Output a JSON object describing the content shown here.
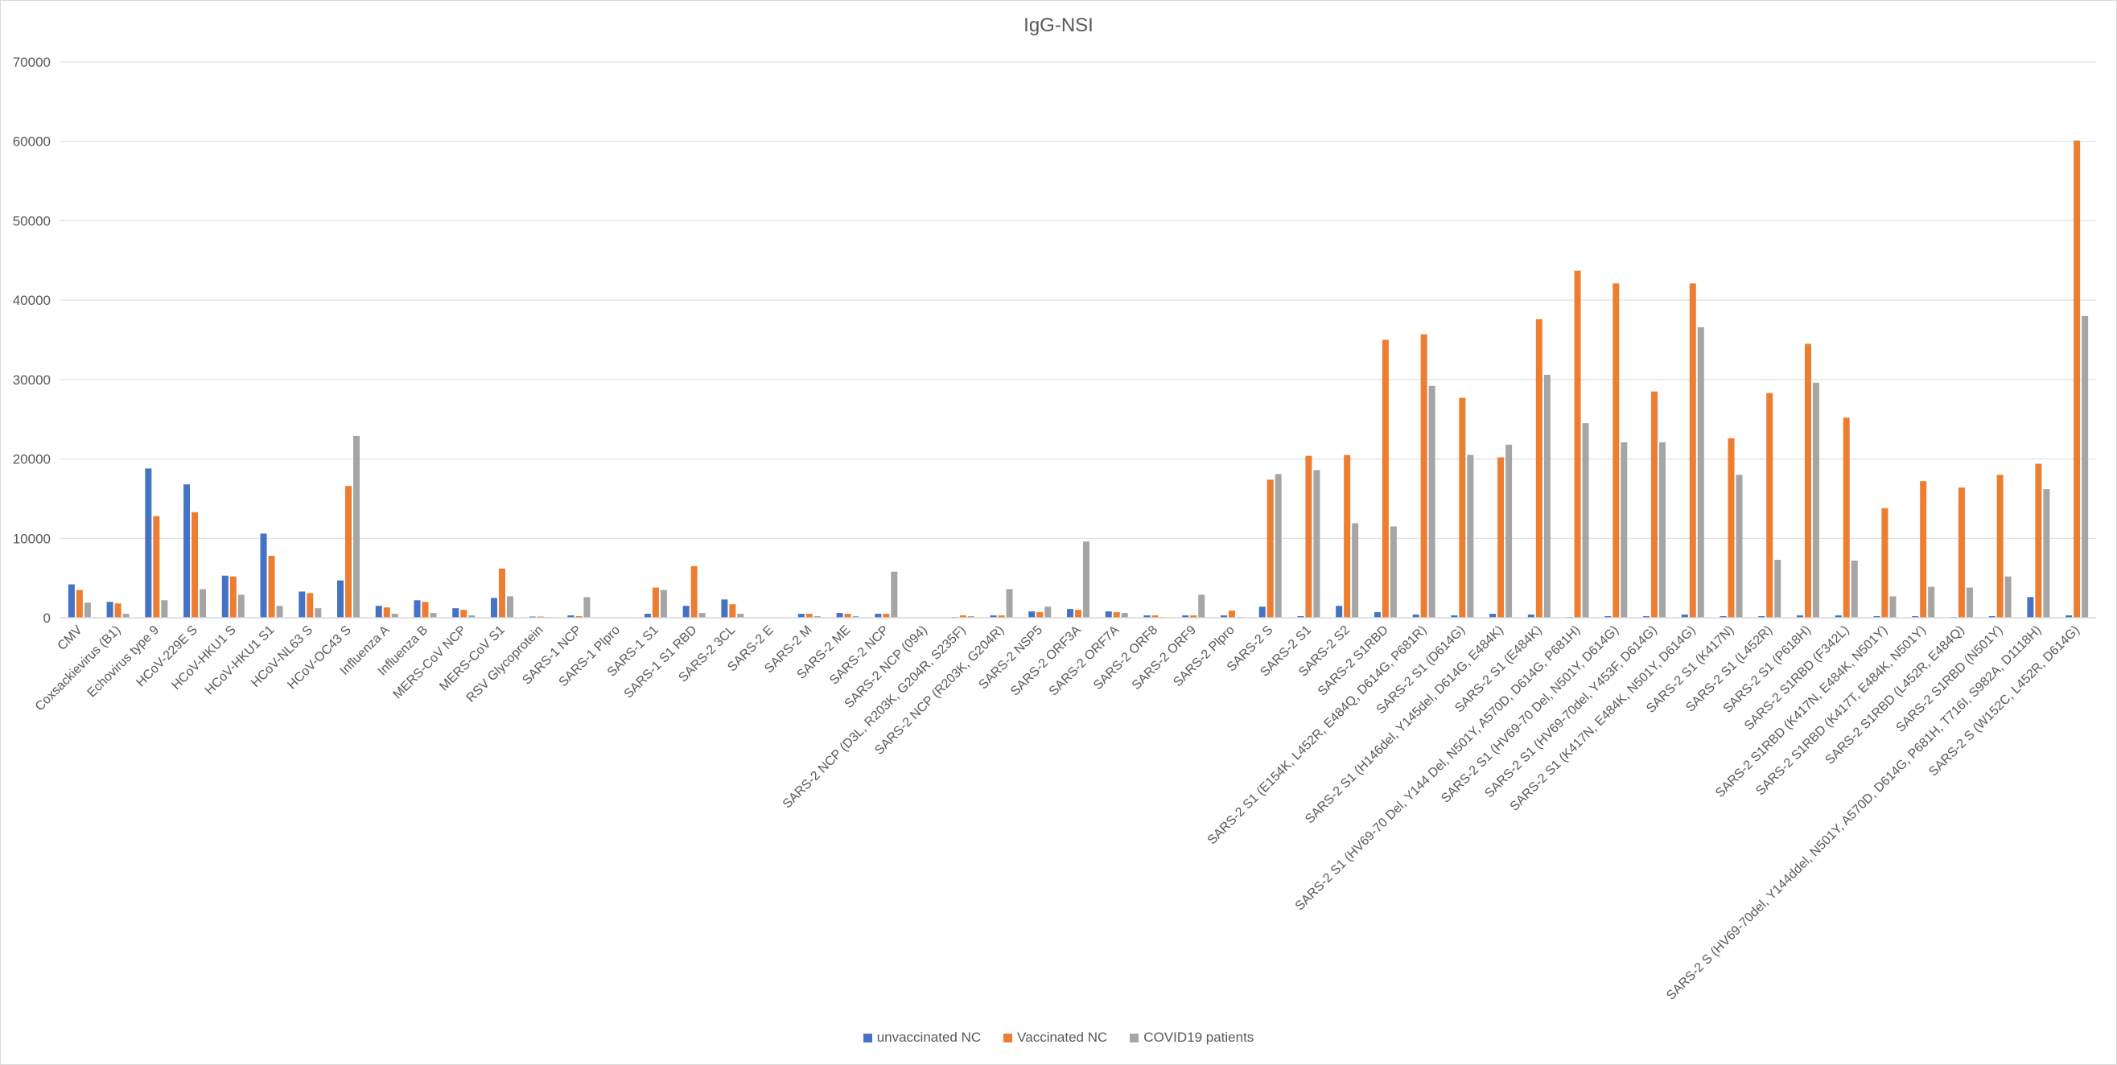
{
  "chart_data": {
    "type": "bar",
    "title": "IgG-NSI",
    "xlabel": "",
    "ylabel": "",
    "ylim": [
      0,
      70000
    ],
    "yticks": [
      "0",
      "10000",
      "20000",
      "30000",
      "40000",
      "50000",
      "60000",
      "70000"
    ],
    "grid": true,
    "legend_position": "bottom",
    "categories": [
      "CMV",
      "Coxsackievirus (B1)",
      "Echovirus type 9",
      "HCoV-229E S",
      "HCoV-HKU1 S",
      "HCoV-HKU1 S1",
      "HCoV-NL63 S",
      "HCoV-OC43 S",
      "Influenza A",
      "Influenza B",
      "MERS-CoV NCP",
      "MERS-CoV S1",
      "RSV Glycoprotein",
      "SARS-1 NCP",
      "SARS-1 Plpro",
      "SARS-1 S1",
      "SARS-1 S1 RBD",
      "SARS-2 3CL",
      "SARS-2 E",
      "SARS-2 M",
      "SARS-2 ME",
      "SARS-2 NCP",
      "SARS-2 NCP (094)",
      "SARS-2 NCP (D3L, R203K, G204R, S235F)",
      "SARS-2 NCP (R203K, G204R)",
      "SARS-2 NSP5",
      "SARS-2 ORF3A",
      "SARS-2 ORF7A",
      "SARS-2 ORF8",
      "SARS-2 ORF9",
      "SARS-2 Plpro",
      "SARS-2 S",
      "SARS-2 S1",
      "SARS-2 S2",
      "SARS-2 S1RBD",
      "SARS-2 S1 (E154K, L452R, E484Q, D614G, P681R)",
      "SARS-2 S1 (D614G)",
      "SARS-2 S1 (H146del, Y145del, D614G, E484K)",
      "SARS-2 S1 (E484K)",
      "SARS-2 S1 (HV69-70 Del, Y144 Del, N501Y, A570D, D614G, P681H)",
      "SARS-2 S1 (HV69-70 Del, N501Y, D614G)",
      "SARS-2 S1 (HV69-70del, Y453F, D614G)",
      "SARS-2 S1 (K417N, E484K, N501Y, D614G)",
      "SARS-2 S1 (K417N)",
      "SARS-2 S1 (L452R)",
      "SARS-2 S1 (P618H)",
      "SARS-2 S1RBD (F342L)",
      "SARS-2 S1RBD (K417N, E484K, N501Y)",
      "SARS-2 S1RBD (K417T, E484K, N501Y)",
      "SARS-2 S1RBD (L452R, E484Q)",
      "SARS-2 S1RBD (N501Y)",
      "SARS-2 S (HV69-70del, Y144ddel, N501Y, A570D, D614G, P681H, T716I, S982A, D1118H)",
      "SARS-2 S (W152C, L452R, D614G)"
    ],
    "series": [
      {
        "name": "unvaccinated NC",
        "color": "#4472c4",
        "values": [
          4200,
          2000,
          18800,
          16800,
          5300,
          10600,
          3300,
          4700,
          1500,
          2200,
          1200,
          2500,
          150,
          300,
          0,
          500,
          1500,
          2300,
          0,
          500,
          600,
          500,
          0,
          100,
          300,
          800,
          1100,
          800,
          300,
          300,
          300,
          1400,
          200,
          1500,
          700,
          400,
          300,
          500,
          400,
          100,
          200,
          200,
          400,
          200,
          200,
          300,
          300,
          200,
          200,
          100,
          200,
          2600,
          300
        ]
      },
      {
        "name": "Vaccinated NC",
        "color": "#ed7d31",
        "values": [
          3500,
          1800,
          12800,
          13300,
          5200,
          7800,
          3100,
          16600,
          1300,
          2000,
          1000,
          6200,
          150,
          200,
          0,
          3800,
          6500,
          1700,
          0,
          500,
          500,
          500,
          0,
          300,
          300,
          700,
          1000,
          700,
          300,
          300,
          900,
          17400,
          20400,
          20500,
          35000,
          35700,
          27700,
          20200,
          37600,
          43700,
          42100,
          28500,
          42100,
          22600,
          28300,
          34500,
          25200,
          13800,
          17200,
          16400,
          18000,
          19400,
          60100
        ]
      },
      {
        "name": "COVID19 patients",
        "color": "#a5a5a5",
        "values": [
          1900,
          500,
          2200,
          3600,
          2900,
          1500,
          1200,
          22900,
          500,
          600,
          300,
          2700,
          100,
          2600,
          0,
          3500,
          600,
          500,
          0,
          200,
          200,
          5800,
          0,
          200,
          3600,
          1400,
          9600,
          600,
          100,
          2900,
          100,
          18100,
          18600,
          11900,
          11500,
          29200,
          20500,
          21800,
          30600,
          24500,
          22100,
          22100,
          36600,
          18000,
          7300,
          29600,
          7200,
          2700,
          3900,
          3800,
          5200,
          16200,
          38000
        ]
      }
    ]
  }
}
